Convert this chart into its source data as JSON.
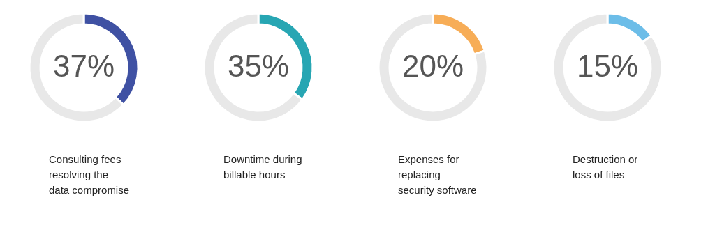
{
  "chart_data": [
    {
      "type": "donut",
      "title": "Consulting fees resolving the data compromise",
      "categories": [
        null,
        null
      ],
      "values": [
        37,
        63
      ],
      "colors": [
        "#3f51a3",
        "#e8e8e8"
      ],
      "value_labels": [
        "37%",
        null
      ]
    },
    {
      "type": "donut",
      "title": "Downtime during billable hours",
      "categories": [
        null,
        null
      ],
      "values": [
        35,
        65
      ],
      "colors": [
        "#27a6b3",
        "#e8e8e8"
      ],
      "value_labels": [
        "35%",
        null
      ]
    },
    {
      "type": "donut",
      "title": "Expenses for replacing security software",
      "categories": [
        null,
        null
      ],
      "values": [
        20,
        80
      ],
      "colors": [
        "#f7ad57",
        "#e8e8e8"
      ],
      "value_labels": [
        "20%",
        null
      ]
    },
    {
      "type": "donut",
      "title": "Destruction or loss of files",
      "categories": [
        null,
        null
      ],
      "values": [
        15,
        85
      ],
      "colors": [
        "#6cbde8",
        "#e8e8e8"
      ],
      "value_labels": [
        "15%",
        null
      ]
    }
  ]
}
